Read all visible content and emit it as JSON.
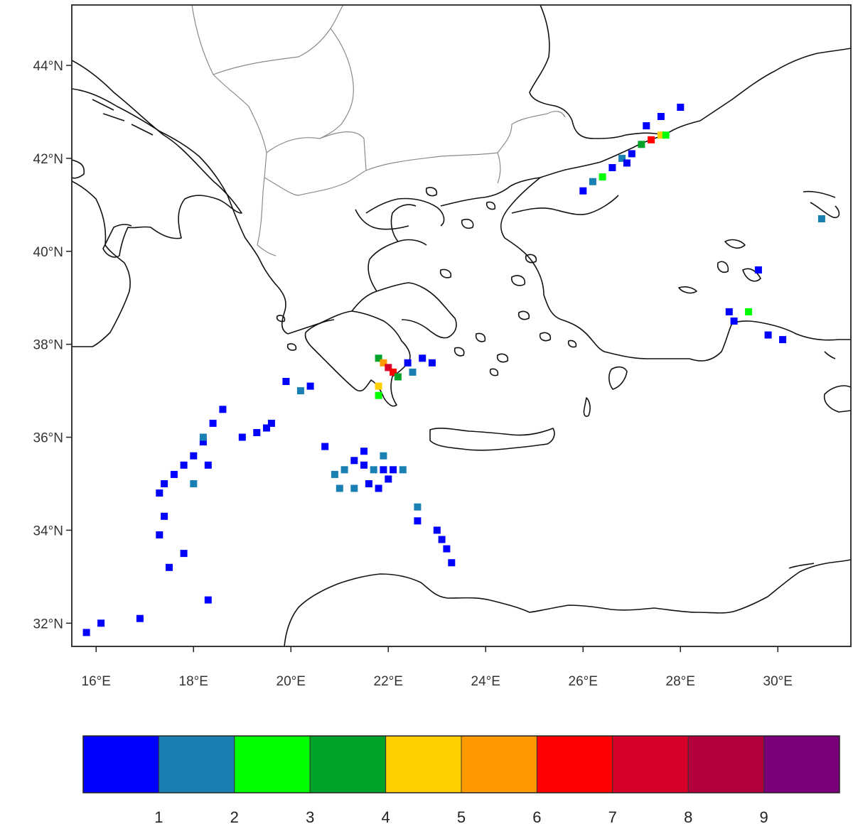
{
  "map": {
    "projection": "lat-lon",
    "lon_range": [
      15.5,
      31.5
    ],
    "lat_range": [
      31.5,
      45.3
    ],
    "lat_ticks": [
      {
        "value": 44,
        "label": "44°N"
      },
      {
        "value": 42,
        "label": "42°N"
      },
      {
        "value": 40,
        "label": "40°N"
      },
      {
        "value": 38,
        "label": "38°N"
      },
      {
        "value": 36,
        "label": "36°N"
      },
      {
        "value": 34,
        "label": "34°N"
      },
      {
        "value": 32,
        "label": "32°N"
      }
    ],
    "lon_ticks": [
      {
        "value": 16,
        "label": "16°E"
      },
      {
        "value": 18,
        "label": "18°E"
      },
      {
        "value": 20,
        "label": "20°E"
      },
      {
        "value": 22,
        "label": "22°E"
      },
      {
        "value": 24,
        "label": "24°E"
      },
      {
        "value": 26,
        "label": "26°E"
      },
      {
        "value": 28,
        "label": "28°E"
      },
      {
        "value": 30,
        "label": "30°E"
      }
    ],
    "coastline_color": "#111111",
    "border_color": "#888888",
    "field_cells": [
      {
        "lon": 17.3,
        "lat": 34.8,
        "level": 1
      },
      {
        "lon": 17.4,
        "lat": 35.0,
        "level": 1
      },
      {
        "lon": 17.6,
        "lat": 35.2,
        "level": 1
      },
      {
        "lon": 17.8,
        "lat": 35.4,
        "level": 1
      },
      {
        "lon": 18.0,
        "lat": 35.6,
        "level": 1
      },
      {
        "lon": 18.2,
        "lat": 35.9,
        "level": 1
      },
      {
        "lon": 18.4,
        "lat": 36.3,
        "level": 1
      },
      {
        "lon": 18.6,
        "lat": 36.6,
        "level": 1
      },
      {
        "lon": 18.2,
        "lat": 36.0,
        "level": 2
      },
      {
        "lon": 18.0,
        "lat": 35.0,
        "level": 2
      },
      {
        "lon": 18.3,
        "lat": 35.4,
        "level": 1
      },
      {
        "lon": 17.4,
        "lat": 34.3,
        "level": 1
      },
      {
        "lon": 17.3,
        "lat": 33.9,
        "level": 1
      },
      {
        "lon": 17.8,
        "lat": 33.5,
        "level": 1
      },
      {
        "lon": 17.5,
        "lat": 33.2,
        "level": 1
      },
      {
        "lon": 18.3,
        "lat": 32.5,
        "level": 1
      },
      {
        "lon": 19.0,
        "lat": 36.0,
        "level": 1
      },
      {
        "lon": 19.3,
        "lat": 36.1,
        "level": 1
      },
      {
        "lon": 19.5,
        "lat": 36.2,
        "level": 1
      },
      {
        "lon": 19.6,
        "lat": 36.3,
        "level": 1
      },
      {
        "lon": 20.2,
        "lat": 37.0,
        "level": 2
      },
      {
        "lon": 20.4,
        "lat": 37.1,
        "level": 1
      },
      {
        "lon": 19.9,
        "lat": 37.2,
        "level": 1
      },
      {
        "lon": 20.7,
        "lat": 35.8,
        "level": 1
      },
      {
        "lon": 20.9,
        "lat": 35.2,
        "level": 2
      },
      {
        "lon": 21.1,
        "lat": 35.3,
        "level": 2
      },
      {
        "lon": 21.3,
        "lat": 35.5,
        "level": 1
      },
      {
        "lon": 21.5,
        "lat": 35.4,
        "level": 1
      },
      {
        "lon": 21.7,
        "lat": 35.3,
        "level": 2
      },
      {
        "lon": 21.9,
        "lat": 35.3,
        "level": 1
      },
      {
        "lon": 22.1,
        "lat": 35.3,
        "level": 1
      },
      {
        "lon": 22.3,
        "lat": 35.3,
        "level": 2
      },
      {
        "lon": 21.0,
        "lat": 34.9,
        "level": 2
      },
      {
        "lon": 21.3,
        "lat": 34.9,
        "level": 2
      },
      {
        "lon": 21.6,
        "lat": 35.0,
        "level": 1
      },
      {
        "lon": 21.8,
        "lat": 34.9,
        "level": 1
      },
      {
        "lon": 22.0,
        "lat": 35.1,
        "level": 1
      },
      {
        "lon": 22.6,
        "lat": 34.5,
        "level": 2
      },
      {
        "lon": 22.6,
        "lat": 34.2,
        "level": 1
      },
      {
        "lon": 21.5,
        "lat": 35.7,
        "level": 1
      },
      {
        "lon": 21.9,
        "lat": 35.6,
        "level": 2
      },
      {
        "lon": 23.0,
        "lat": 34.0,
        "level": 1
      },
      {
        "lon": 23.1,
        "lat": 33.8,
        "level": 1
      },
      {
        "lon": 23.2,
        "lat": 33.6,
        "level": 1
      },
      {
        "lon": 23.3,
        "lat": 33.3,
        "level": 1
      },
      {
        "lon": 15.8,
        "lat": 31.8,
        "level": 1
      },
      {
        "lon": 16.1,
        "lat": 32.0,
        "level": 1
      },
      {
        "lon": 16.9,
        "lat": 32.1,
        "level": 1
      },
      {
        "lon": 21.8,
        "lat": 37.7,
        "level": 4
      },
      {
        "lon": 21.9,
        "lat": 37.6,
        "level": 6
      },
      {
        "lon": 22.0,
        "lat": 37.5,
        "level": 8
      },
      {
        "lon": 22.1,
        "lat": 37.4,
        "level": 7
      },
      {
        "lon": 22.2,
        "lat": 37.3,
        "level": 4
      },
      {
        "lon": 21.8,
        "lat": 37.1,
        "level": 5
      },
      {
        "lon": 21.8,
        "lat": 36.9,
        "level": 3
      },
      {
        "lon": 22.4,
        "lat": 37.6,
        "level": 1
      },
      {
        "lon": 22.7,
        "lat": 37.7,
        "level": 1
      },
      {
        "lon": 22.9,
        "lat": 37.6,
        "level": 1
      },
      {
        "lon": 22.5,
        "lat": 37.4,
        "level": 2
      },
      {
        "lon": 26.0,
        "lat": 41.3,
        "level": 1
      },
      {
        "lon": 26.2,
        "lat": 41.5,
        "level": 2
      },
      {
        "lon": 26.4,
        "lat": 41.6,
        "level": 3
      },
      {
        "lon": 26.6,
        "lat": 41.8,
        "level": 1
      },
      {
        "lon": 26.8,
        "lat": 42.0,
        "level": 2
      },
      {
        "lon": 27.0,
        "lat": 42.1,
        "level": 1
      },
      {
        "lon": 27.2,
        "lat": 42.3,
        "level": 4
      },
      {
        "lon": 27.4,
        "lat": 42.4,
        "level": 7
      },
      {
        "lon": 27.6,
        "lat": 42.5,
        "level": 5
      },
      {
        "lon": 27.7,
        "lat": 42.5,
        "level": 3
      },
      {
        "lon": 27.3,
        "lat": 42.7,
        "level": 1
      },
      {
        "lon": 27.6,
        "lat": 42.9,
        "level": 1
      },
      {
        "lon": 28.0,
        "lat": 43.1,
        "level": 1
      },
      {
        "lon": 26.9,
        "lat": 41.9,
        "level": 1
      },
      {
        "lon": 29.0,
        "lat": 38.7,
        "level": 1
      },
      {
        "lon": 29.1,
        "lat": 38.5,
        "level": 1
      },
      {
        "lon": 29.4,
        "lat": 38.7,
        "level": 3
      },
      {
        "lon": 29.8,
        "lat": 38.2,
        "level": 1
      },
      {
        "lon": 30.1,
        "lat": 38.1,
        "level": 1
      },
      {
        "lon": 29.6,
        "lat": 39.6,
        "level": 1
      },
      {
        "lon": 30.9,
        "lat": 40.7,
        "level": 2
      }
    ]
  },
  "colorbar": {
    "colors": [
      "#0000ff",
      "#1a80b3",
      "#00ff00",
      "#00a32a",
      "#ffd000",
      "#ff9900",
      "#ff0000",
      "#d8002a",
      "#b3003a",
      "#7a007a"
    ],
    "labels": [
      "1",
      "2",
      "3",
      "4",
      "5",
      "6",
      "7",
      "8",
      "9"
    ]
  }
}
